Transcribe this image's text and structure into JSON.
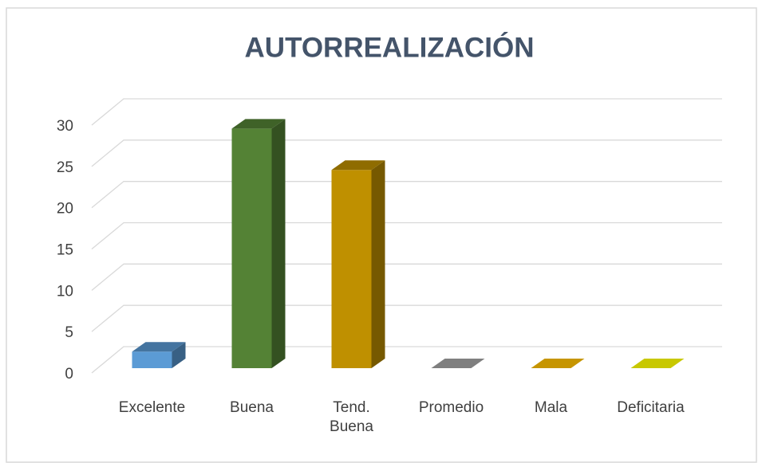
{
  "chart_data": {
    "type": "bar3d",
    "title": "AUTORREALIZACIÓN",
    "categories": [
      "Excelente",
      "Buena",
      "Tend. Buena",
      "Promedio",
      "Mala",
      "Deficitaria"
    ],
    "values": [
      2,
      29,
      24,
      0,
      0,
      0
    ],
    "colors": [
      "#5b9bd5",
      "#548235",
      "#bf9000",
      "#7f7f7f",
      "#c69500",
      "#c8c800"
    ],
    "ylim": [
      0,
      30
    ],
    "yticks": [
      0,
      5,
      10,
      15,
      20,
      25,
      30
    ],
    "grid": true
  }
}
